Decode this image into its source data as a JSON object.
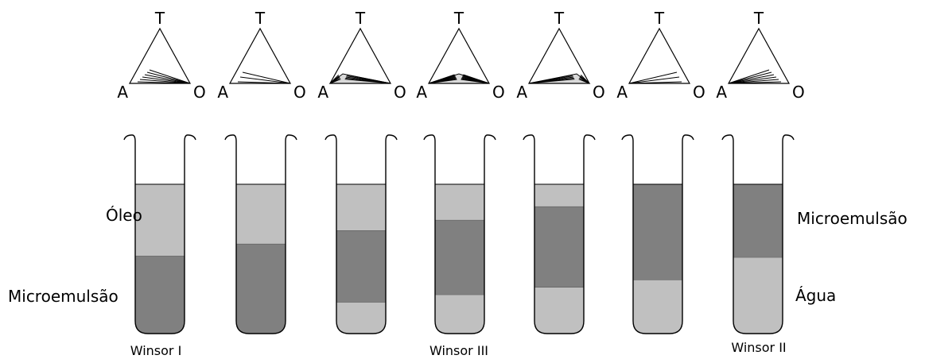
{
  "colors": {
    "oil": "#c0c0c0",
    "microemulsion": "#808080",
    "water": "#c0c0c0",
    "outline": "#000000",
    "fan": "#000000"
  },
  "vertex_labels": {
    "top": "T",
    "left": "A",
    "right": "O"
  },
  "side_labels": {
    "oil": "Óleo",
    "micro_left": "Microemulsão",
    "micro_right": "Microemulsão",
    "water": "Água"
  },
  "captions": [
    "Winsor I",
    "Winsor III",
    "Winsor II"
  ],
  "systems": [
    {
      "tube": {
        "oil": 0.48,
        "microemulsion": 0.52,
        "water": 0
      },
      "fan": {
        "anchor": "O",
        "density": 6
      }
    },
    {
      "tube": {
        "oil": 0.4,
        "microemulsion": 0.6,
        "water": 0
      },
      "fan": {
        "anchor": "O",
        "density": 3
      }
    },
    {
      "tube": {
        "oil": 0.31,
        "microemulsion": 0.48,
        "water": 0.21
      },
      "fan": {
        "anchor": "three-phase-left",
        "density": 5
      }
    },
    {
      "tube": {
        "oil": 0.24,
        "microemulsion": 0.5,
        "water": 0.26
      },
      "fan": {
        "anchor": "three-phase-center",
        "density": 7
      }
    },
    {
      "tube": {
        "oil": 0.15,
        "microemulsion": 0.54,
        "water": 0.31
      },
      "fan": {
        "anchor": "three-phase-right",
        "density": 5
      }
    },
    {
      "tube": {
        "oil": 0,
        "microemulsion": 0.64,
        "water": 0.36
      },
      "fan": {
        "anchor": "A",
        "density": 3
      }
    },
    {
      "tube": {
        "oil": 0,
        "microemulsion": 0.49,
        "water": 0.51
      },
      "fan": {
        "anchor": "A",
        "density": 6
      }
    }
  ]
}
